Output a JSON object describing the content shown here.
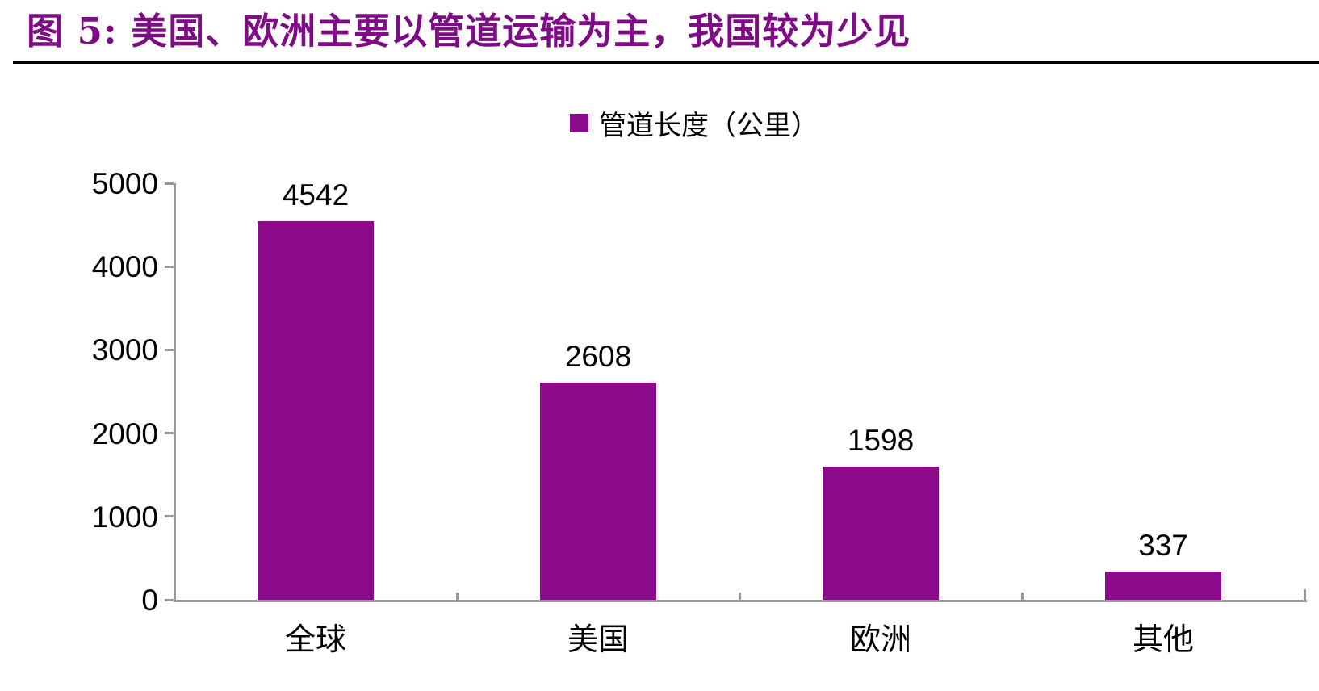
{
  "title": "图 5:  美国、欧洲主要以管道运输为主，我国较为少见",
  "legend": {
    "label": "管道长度（公里）",
    "swatch_color": "#8B0A8C"
  },
  "colors": {
    "title_text": "#7D0C85",
    "bar_fill": "#8B0A8C",
    "axis_line": "#999999",
    "label_text": "#000000",
    "divider": "#000000",
    "background": "#FFFFFF"
  },
  "chart_data": {
    "type": "bar",
    "title": "图 5:  美国、欧洲主要以管道运输为主，我国较为少见",
    "series_name": "管道长度（公里）",
    "categories": [
      "全球",
      "美国",
      "欧洲",
      "其他"
    ],
    "values": [
      4542,
      2608,
      1598,
      337
    ],
    "value_labels": [
      "4542",
      "2608",
      "1598",
      "337"
    ],
    "xlabel": "",
    "ylabel": "",
    "ylim": [
      0,
      5000
    ],
    "y_tick_step": 1000,
    "y_tick_labels": [
      "0",
      "1000",
      "2000",
      "3000",
      "4000",
      "5000"
    ],
    "grid": false,
    "legend_position": "top-center",
    "data_labels": true
  }
}
